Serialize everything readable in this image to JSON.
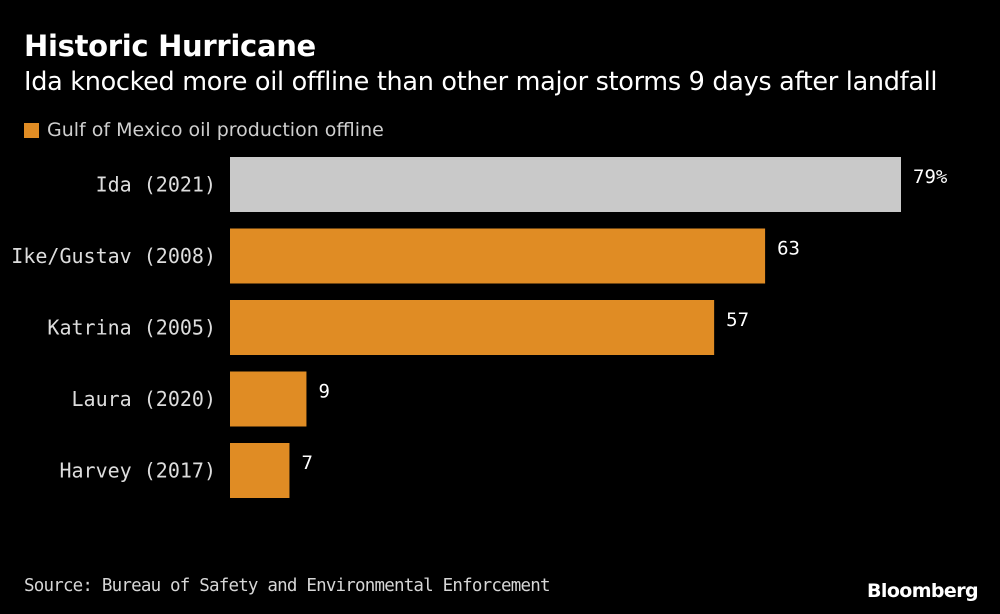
{
  "header": {
    "title": "Historic Hurricane",
    "subtitle": "Ida knocked more oil offline than other major storms 9 days after landfall"
  },
  "footer": {
    "source": "Source: Bureau of Safety and Environmental Enforcement",
    "brand": "Bloomberg"
  },
  "chart_data": {
    "type": "bar",
    "orientation": "horizontal",
    "title": "Historic Hurricane",
    "subtitle": "Ida knocked more oil offline than other major storms 9 days after landfall",
    "legend": {
      "placement": "top-left",
      "entries": [
        {
          "label": "Gulf of Mexico oil production offline",
          "color": "#e08c24"
        }
      ]
    },
    "categories": [
      "Ida (2021)",
      "Ike/Gustav (2008)",
      "Katrina (2005)",
      "Laura (2020)",
      "Harvey (2017)"
    ],
    "values": [
      79,
      63,
      57,
      9,
      7
    ],
    "value_labels": [
      "79%",
      "63",
      "57",
      "9",
      "7"
    ],
    "unit": "%",
    "highlight_index": 0,
    "colors": {
      "bar": "#e08c24",
      "highlight": "#c9c9c9",
      "background": "#000000",
      "text": "#ffffff"
    },
    "xlim": [
      0,
      79
    ],
    "grid": false,
    "xlabel": "",
    "ylabel": ""
  }
}
